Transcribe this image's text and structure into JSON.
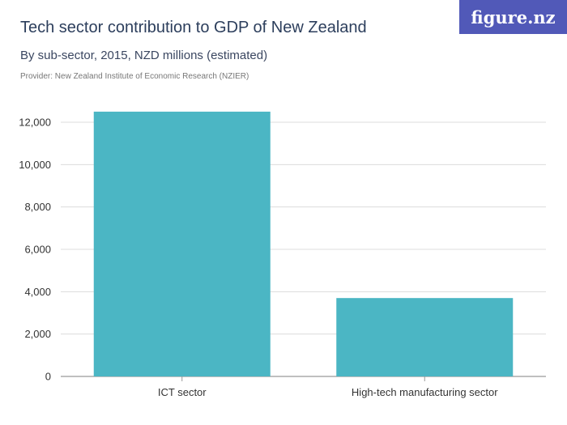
{
  "header": {
    "title": "Tech sector contribution to GDP of New Zealand",
    "subtitle": "By sub-sector, 2015, NZD millions (estimated)",
    "provider": "Provider: New Zealand Institute of Economic Research (NZIER)"
  },
  "logo": {
    "text": "figure.nz"
  },
  "colors": {
    "bar": "#4bb6c4",
    "grid": "#dcdcdc",
    "axis": "#999999"
  },
  "chart_data": {
    "type": "bar",
    "title": "Tech sector contribution to GDP of New Zealand",
    "subtitle": "By sub-sector, 2015, NZD millions (estimated)",
    "categories": [
      "ICT sector",
      "High-tech manufacturing sector"
    ],
    "values": [
      12500,
      3700
    ],
    "ylim": [
      0,
      12000
    ],
    "yticks": [
      0,
      2000,
      4000,
      6000,
      8000,
      10000,
      12000
    ],
    "ytick_labels": [
      "0",
      "2,000",
      "4,000",
      "6,000",
      "8,000",
      "10,000",
      "12,000"
    ],
    "grid": true
  }
}
